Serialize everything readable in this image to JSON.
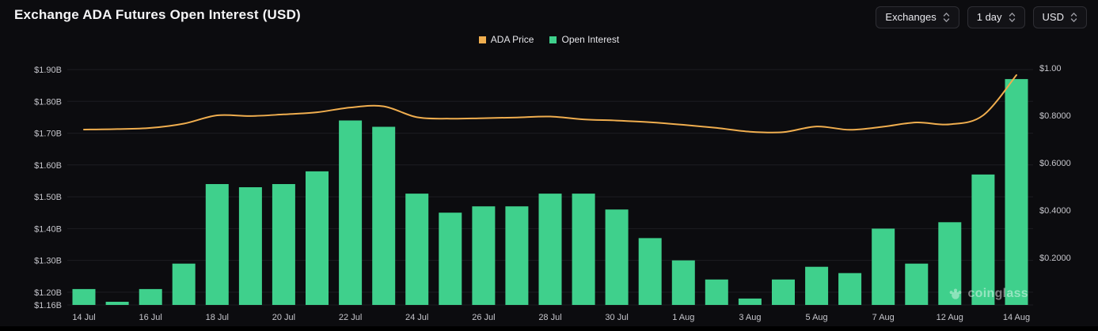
{
  "header": {
    "title": "Exchange ADA Futures Open Interest (USD)",
    "controls": [
      {
        "label": "Exchanges",
        "icon": "chevron-up-down"
      },
      {
        "label": "1 day",
        "icon": "chevron-up-down"
      },
      {
        "label": "USD",
        "icon": "chevron-up-down"
      }
    ]
  },
  "legend": [
    {
      "name": "ADA Price",
      "color": "#F0AE4F"
    },
    {
      "name": "Open Interest",
      "color": "#3FD08C"
    }
  ],
  "watermark": {
    "text": "coinglass",
    "icon": "coinglass-paw"
  },
  "chart_data": {
    "type": "combo",
    "title": "Exchange ADA Futures Open Interest (USD)",
    "categories": [
      "14 Jul",
      "15 Jul",
      "16 Jul",
      "17 Jul",
      "18 Jul",
      "19 Jul",
      "20 Jul",
      "21 Jul",
      "22 Jul",
      "23 Jul",
      "24 Jul",
      "25 Jul",
      "26 Jul",
      "27 Jul",
      "28 Jul",
      "29 Jul",
      "30 Jul",
      "31 Jul",
      "1 Aug",
      "2 Aug",
      "3 Aug",
      "4 Aug",
      "5 Aug",
      "6 Aug",
      "7 Aug",
      "8 Aug",
      "12 Aug",
      "13 Aug",
      "14 Aug"
    ],
    "x_tick_labels": [
      {
        "index": 0,
        "label": "14 Jul"
      },
      {
        "index": 2,
        "label": "16 Jul"
      },
      {
        "index": 4,
        "label": "18 Jul"
      },
      {
        "index": 6,
        "label": "20 Jul"
      },
      {
        "index": 8,
        "label": "22 Jul"
      },
      {
        "index": 10,
        "label": "24 Jul"
      },
      {
        "index": 12,
        "label": "26 Jul"
      },
      {
        "index": 14,
        "label": "28 Jul"
      },
      {
        "index": 16,
        "label": "30 Jul"
      },
      {
        "index": 18,
        "label": "1 Aug"
      },
      {
        "index": 20,
        "label": "3 Aug"
      },
      {
        "index": 22,
        "label": "5 Aug"
      },
      {
        "index": 24,
        "label": "7 Aug"
      },
      {
        "index": 26,
        "label": "12 Aug"
      },
      {
        "index": 28,
        "label": "14 Aug"
      }
    ],
    "series": [
      {
        "name": "Open Interest",
        "type": "bar",
        "axis": "left",
        "unit": "USD billions",
        "color": "#3FD08C",
        "values": [
          1.21,
          1.17,
          1.21,
          1.29,
          1.54,
          1.53,
          1.54,
          1.58,
          1.74,
          1.72,
          1.51,
          1.45,
          1.47,
          1.47,
          1.51,
          1.51,
          1.46,
          1.37,
          1.3,
          1.24,
          1.18,
          1.24,
          1.28,
          1.26,
          1.4,
          1.29,
          1.42,
          1.57,
          1.87
        ]
      },
      {
        "name": "ADA Price",
        "type": "line",
        "axis": "right",
        "unit": "USD",
        "color": "#F0AE4F",
        "values": [
          0.74,
          0.742,
          0.747,
          0.765,
          0.8,
          0.797,
          0.804,
          0.813,
          0.833,
          0.838,
          0.792,
          0.786,
          0.788,
          0.791,
          0.795,
          0.783,
          0.778,
          0.771,
          0.76,
          0.747,
          0.731,
          0.729,
          0.753,
          0.739,
          0.752,
          0.77,
          0.762,
          0.8,
          0.97
        ]
      }
    ],
    "left_axis": {
      "min": 1.16,
      "max": 1.92,
      "ticks": [
        {
          "value": 1.9,
          "label": "$1.90B"
        },
        {
          "value": 1.8,
          "label": "$1.80B"
        },
        {
          "value": 1.7,
          "label": "$1.70B"
        },
        {
          "value": 1.6,
          "label": "$1.60B"
        },
        {
          "value": 1.5,
          "label": "$1.50B"
        },
        {
          "value": 1.4,
          "label": "$1.40B"
        },
        {
          "value": 1.3,
          "label": "$1.30B"
        },
        {
          "value": 1.2,
          "label": "$1.20B"
        },
        {
          "value": 1.16,
          "label": "$1.16B"
        }
      ]
    },
    "right_axis": {
      "min": 0,
      "max": 1.02,
      "ticks": [
        {
          "value": 1.0,
          "label": "$1.00"
        },
        {
          "value": 0.8,
          "label": "$0.8000"
        },
        {
          "value": 0.6,
          "label": "$0.6000"
        },
        {
          "value": 0.4,
          "label": "$0.4000"
        },
        {
          "value": 0.2,
          "label": "$0.2000"
        }
      ]
    },
    "grid": true,
    "legend_position": "top-center",
    "colors": {
      "background": "#0C0C0F",
      "grid": "#1D1D22",
      "tick_text": "#C6C6CC"
    }
  }
}
